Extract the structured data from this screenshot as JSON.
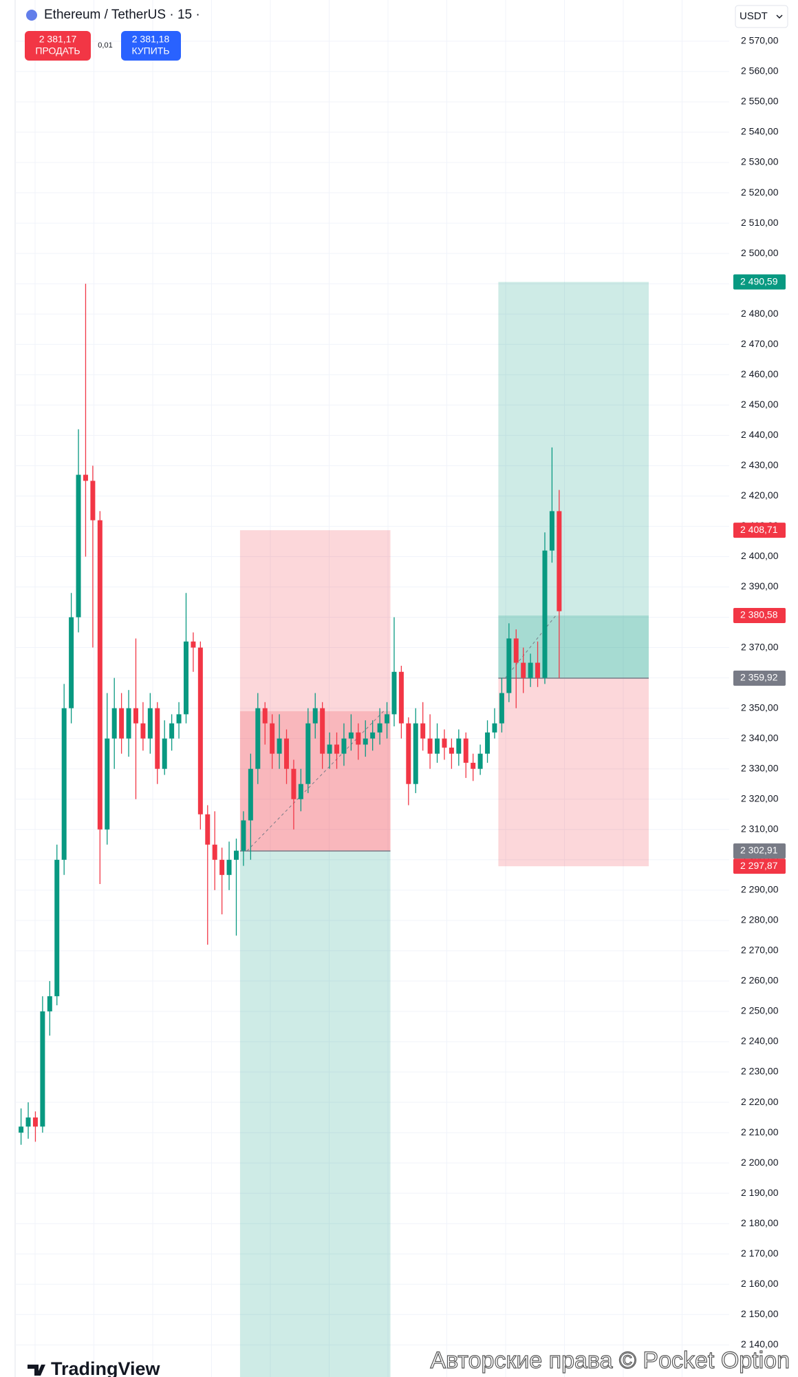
{
  "header": {
    "symbol": "Ethereum / TetherUS · 15 ·",
    "sell": {
      "price": "2 381,17",
      "label": "ПРОДАТЬ"
    },
    "spread": "0,01",
    "buy": {
      "price": "2 381,18",
      "label": "КУПИТЬ"
    },
    "currency": "USDT"
  },
  "footer": {
    "logo": "TradingView",
    "watermark": "Авторские права © Pocket Option"
  },
  "chart_data": {
    "type": "candlestick",
    "up_color": "#089981",
    "down_color": "#f23645",
    "grid": true,
    "ylim": [
      2129.4,
      2583.6
    ],
    "yticks": [
      {
        "value": 2140,
        "label": "2 140,00"
      },
      {
        "value": 2150,
        "label": "2 150,00"
      },
      {
        "value": 2160,
        "label": "2 160,00"
      },
      {
        "value": 2170,
        "label": "2 170,00"
      },
      {
        "value": 2180,
        "label": "2 180,00"
      },
      {
        "value": 2190,
        "label": "2 190,00"
      },
      {
        "value": 2200,
        "label": "2 200,00"
      },
      {
        "value": 2210,
        "label": "2 210,00"
      },
      {
        "value": 2220,
        "label": "2 220,00"
      },
      {
        "value": 2230,
        "label": "2 230,00"
      },
      {
        "value": 2240,
        "label": "2 240,00"
      },
      {
        "value": 2250,
        "label": "2 250,00"
      },
      {
        "value": 2260,
        "label": "2 260,00"
      },
      {
        "value": 2270,
        "label": "2 270,00"
      },
      {
        "value": 2280,
        "label": "2 280,00"
      },
      {
        "value": 2290,
        "label": "2 290,00"
      },
      {
        "value": 2300,
        "label": "2 300,00"
      },
      {
        "value": 2310,
        "label": "2 310,00"
      },
      {
        "value": 2320,
        "label": "2 320,00"
      },
      {
        "value": 2330,
        "label": "2 330,00"
      },
      {
        "value": 2340,
        "label": "2 340,00"
      },
      {
        "value": 2350,
        "label": "2 350,00"
      },
      {
        "value": 2360,
        "label": "2 360,00"
      },
      {
        "value": 2370,
        "label": "2 370,00"
      },
      {
        "value": 2380,
        "label": "2 380,00"
      },
      {
        "value": 2390,
        "label": "2 390,00"
      },
      {
        "value": 2400,
        "label": "2 400,00"
      },
      {
        "value": 2410,
        "label": "2 410,00"
      },
      {
        "value": 2420,
        "label": "2 420,00"
      },
      {
        "value": 2430,
        "label": "2 430,00"
      },
      {
        "value": 2440,
        "label": "2 440,00"
      },
      {
        "value": 2450,
        "label": "2 450,00"
      },
      {
        "value": 2460,
        "label": "2 460,00"
      },
      {
        "value": 2470,
        "label": "2 470,00"
      },
      {
        "value": 2480,
        "label": "2 480,00"
      },
      {
        "value": 2490,
        "label": "2 490,00"
      },
      {
        "value": 2500,
        "label": "2 500,00"
      },
      {
        "value": 2510,
        "label": "2 510,00"
      },
      {
        "value": 2520,
        "label": "2 520,00"
      },
      {
        "value": 2530,
        "label": "2 530,00"
      },
      {
        "value": 2540,
        "label": "2 540,00"
      },
      {
        "value": 2550,
        "label": "2 550,00"
      },
      {
        "value": 2560,
        "label": "2 560,00"
      },
      {
        "value": 2570,
        "label": "2 570,00"
      }
    ],
    "open": [
      2210,
      2212,
      2215,
      2212,
      2250,
      2255,
      2300,
      2350,
      2380,
      2427,
      2425,
      2412,
      2310,
      2340,
      2350,
      2340,
      2350,
      2345,
      2340,
      2350,
      2330,
      2340,
      2345,
      2348,
      2372,
      2370,
      2315,
      2305,
      2300,
      2295,
      2300,
      2303,
      2313,
      2330,
      2350,
      2345,
      2335,
      2340,
      2330,
      2320,
      2325,
      2345,
      2350,
      2335,
      2338,
      2335,
      2340,
      2342,
      2338,
      2340,
      2342,
      2345,
      2348,
      2362,
      2345,
      2325,
      2345,
      2340,
      2335,
      2340,
      2337,
      2335,
      2340,
      2332,
      2330,
      2335,
      2342,
      2345,
      2355,
      2373,
      2365,
      2360,
      2365,
      2360,
      2402,
      2415
    ],
    "high": [
      2218,
      2220,
      2217,
      2255,
      2260,
      2305,
      2358,
      2388,
      2442,
      2490,
      2430,
      2415,
      2355,
      2360,
      2355,
      2356,
      2373,
      2352,
      2355,
      2352,
      2346,
      2348,
      2352,
      2388,
      2375,
      2372,
      2318,
      2316,
      2304,
      2306,
      2307,
      2316,
      2335,
      2355,
      2352,
      2348,
      2348,
      2343,
      2333,
      2330,
      2350,
      2355,
      2352,
      2342,
      2342,
      2345,
      2348,
      2345,
      2346,
      2346,
      2350,
      2352,
      2380,
      2364,
      2347,
      2350,
      2352,
      2348,
      2345,
      2343,
      2340,
      2343,
      2342,
      2335,
      2338,
      2346,
      2350,
      2360,
      2378,
      2376,
      2370,
      2368,
      2372,
      2408,
      2436,
      2422
    ],
    "low": [
      2206,
      2208,
      2207,
      2210,
      2242,
      2252,
      2295,
      2345,
      2375,
      2400,
      2370,
      2292,
      2305,
      2330,
      2335,
      2334,
      2320,
      2336,
      2335,
      2325,
      2328,
      2336,
      2340,
      2345,
      2362,
      2310,
      2272,
      2290,
      2282,
      2290,
      2275,
      2298,
      2300,
      2325,
      2338,
      2330,
      2330,
      2325,
      2310,
      2316,
      2322,
      2340,
      2330,
      2330,
      2330,
      2331,
      2336,
      2333,
      2334,
      2336,
      2338,
      2340,
      2344,
      2340,
      2318,
      2322,
      2336,
      2330,
      2332,
      2333,
      2330,
      2331,
      2327,
      2326,
      2328,
      2332,
      2340,
      2342,
      2352,
      2350,
      2355,
      2357,
      2357,
      2358,
      2398,
      2360
    ],
    "close": [
      2212,
      2215,
      2212,
      2250,
      2255,
      2300,
      2350,
      2380,
      2427,
      2425,
      2412,
      2310,
      2340,
      2350,
      2340,
      2350,
      2345,
      2340,
      2350,
      2330,
      2340,
      2345,
      2348,
      2372,
      2370,
      2315,
      2305,
      2300,
      2295,
      2300,
      2303,
      2313,
      2330,
      2350,
      2345,
      2335,
      2340,
      2330,
      2320,
      2325,
      2345,
      2350,
      2335,
      2338,
      2335,
      2340,
      2342,
      2338,
      2340,
      2342,
      2345,
      2348,
      2362,
      2345,
      2325,
      2345,
      2340,
      2335,
      2340,
      2337,
      2335,
      2340,
      2332,
      2330,
      2335,
      2342,
      2345,
      2355,
      2373,
      2365,
      2360,
      2365,
      2360,
      2402,
      2415,
      2382
    ],
    "positions": [
      {
        "side": "short",
        "from": 31,
        "to": 51,
        "entry": 2302.91,
        "stop": 2408.71,
        "filled_to": 2349
      },
      {
        "side": "long",
        "from": 67,
        "to": 87,
        "entry": 2359.92,
        "target": 2490.59,
        "stop": 2297.87,
        "filled_to": 2380.58
      }
    ],
    "price_labels": [
      {
        "value": 2490.59,
        "label": "2 490,59",
        "color": "#089981"
      },
      {
        "value": 2408.71,
        "label": "2 408,71",
        "color": "#f23645"
      },
      {
        "value": 2380.58,
        "label": "2 380,58",
        "color": "#f23645"
      },
      {
        "value": 2359.92,
        "label": "2 359,92",
        "color": "#787b86"
      },
      {
        "value": 2302.91,
        "label": "2 302,91",
        "color": "#787b86"
      },
      {
        "value": 2297.87,
        "label": "2 297,87",
        "color": "#f23645"
      }
    ]
  }
}
